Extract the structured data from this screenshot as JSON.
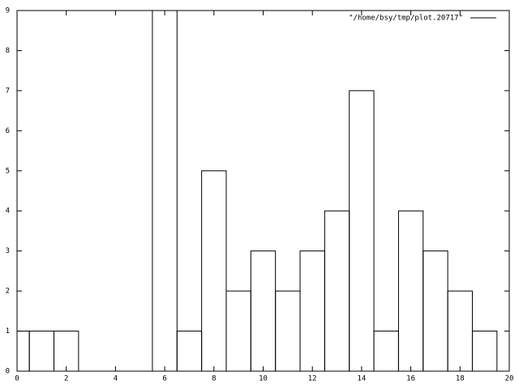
{
  "chart_data": {
    "type": "bar",
    "x": [
      0,
      1,
      2,
      3,
      4,
      5,
      6,
      7,
      8,
      9,
      10,
      11,
      12,
      13,
      14,
      15,
      16,
      17,
      18,
      19
    ],
    "series": [
      {
        "name": "\"/home/bsy/tmp/plot.20717\"",
        "color": "#000000",
        "values": [
          1,
          1,
          1,
          0,
          0,
          0,
          9,
          1,
          5,
          2,
          3,
          2,
          3,
          4,
          7,
          1,
          4,
          3,
          2,
          1
        ]
      }
    ],
    "xlim": [
      0,
      20
    ],
    "xticks": [
      0,
      2,
      4,
      6,
      8,
      10,
      12,
      14,
      16,
      18,
      20
    ],
    "ylim": [
      0,
      9
    ],
    "yticks": [
      0,
      1,
      2,
      3,
      4,
      5,
      6,
      7,
      8,
      9
    ],
    "legend": "top-right"
  }
}
